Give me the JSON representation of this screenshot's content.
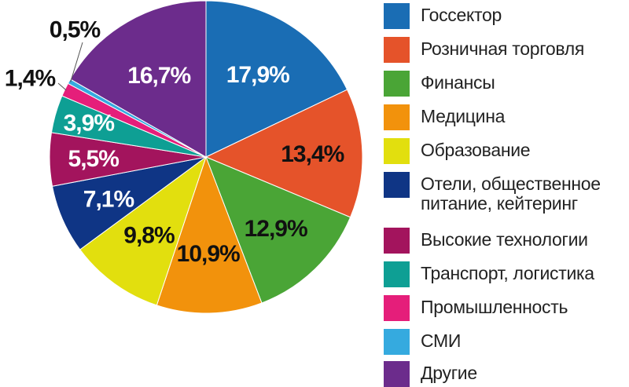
{
  "chart_data": {
    "type": "pie",
    "start_angle_deg": 0,
    "direction": "clockwise",
    "slices": [
      {
        "label": "Госсектор",
        "value": 17.9,
        "value_label": "17,9%",
        "color": "#1a6db4",
        "label_color": "white"
      },
      {
        "label": "Розничная торговля",
        "value": 13.4,
        "value_label": "13,4%",
        "color": "#e5532a",
        "label_color": "black"
      },
      {
        "label": "Финансы",
        "value": 12.9,
        "value_label": "12,9%",
        "color": "#4aa536",
        "label_color": "black"
      },
      {
        "label": "Медицина",
        "value": 10.9,
        "value_label": "10,9%",
        "color": "#f2920c",
        "label_color": "black"
      },
      {
        "label": "Образование",
        "value": 9.8,
        "value_label": "9,8%",
        "color": "#e2df0e",
        "label_color": "black"
      },
      {
        "label": "Отели, общественное\nпитание, кейтеринг",
        "value": 7.1,
        "value_label": "7,1%",
        "color": "#0f3585",
        "label_color": "white"
      },
      {
        "label": "Высокие технологии",
        "value": 5.5,
        "value_label": "5,5%",
        "color": "#a3145d",
        "label_color": "white"
      },
      {
        "label": "Транспорт, логистика",
        "value": 3.9,
        "value_label": "3,9%",
        "color": "#0e9f94",
        "label_color": "white"
      },
      {
        "label": "Промышленность",
        "value": 1.4,
        "value_label": "1,4%",
        "color": "#e51e7a",
        "label_color": "outside"
      },
      {
        "label": "СМИ",
        "value": 0.5,
        "value_label": "0,5%",
        "color": "#35aadf",
        "label_color": "outside"
      },
      {
        "label": "Другие",
        "value": 16.7,
        "value_label": "16,7%",
        "color": "#6c2c8c",
        "label_color": "white"
      }
    ],
    "legend_position": "right"
  }
}
